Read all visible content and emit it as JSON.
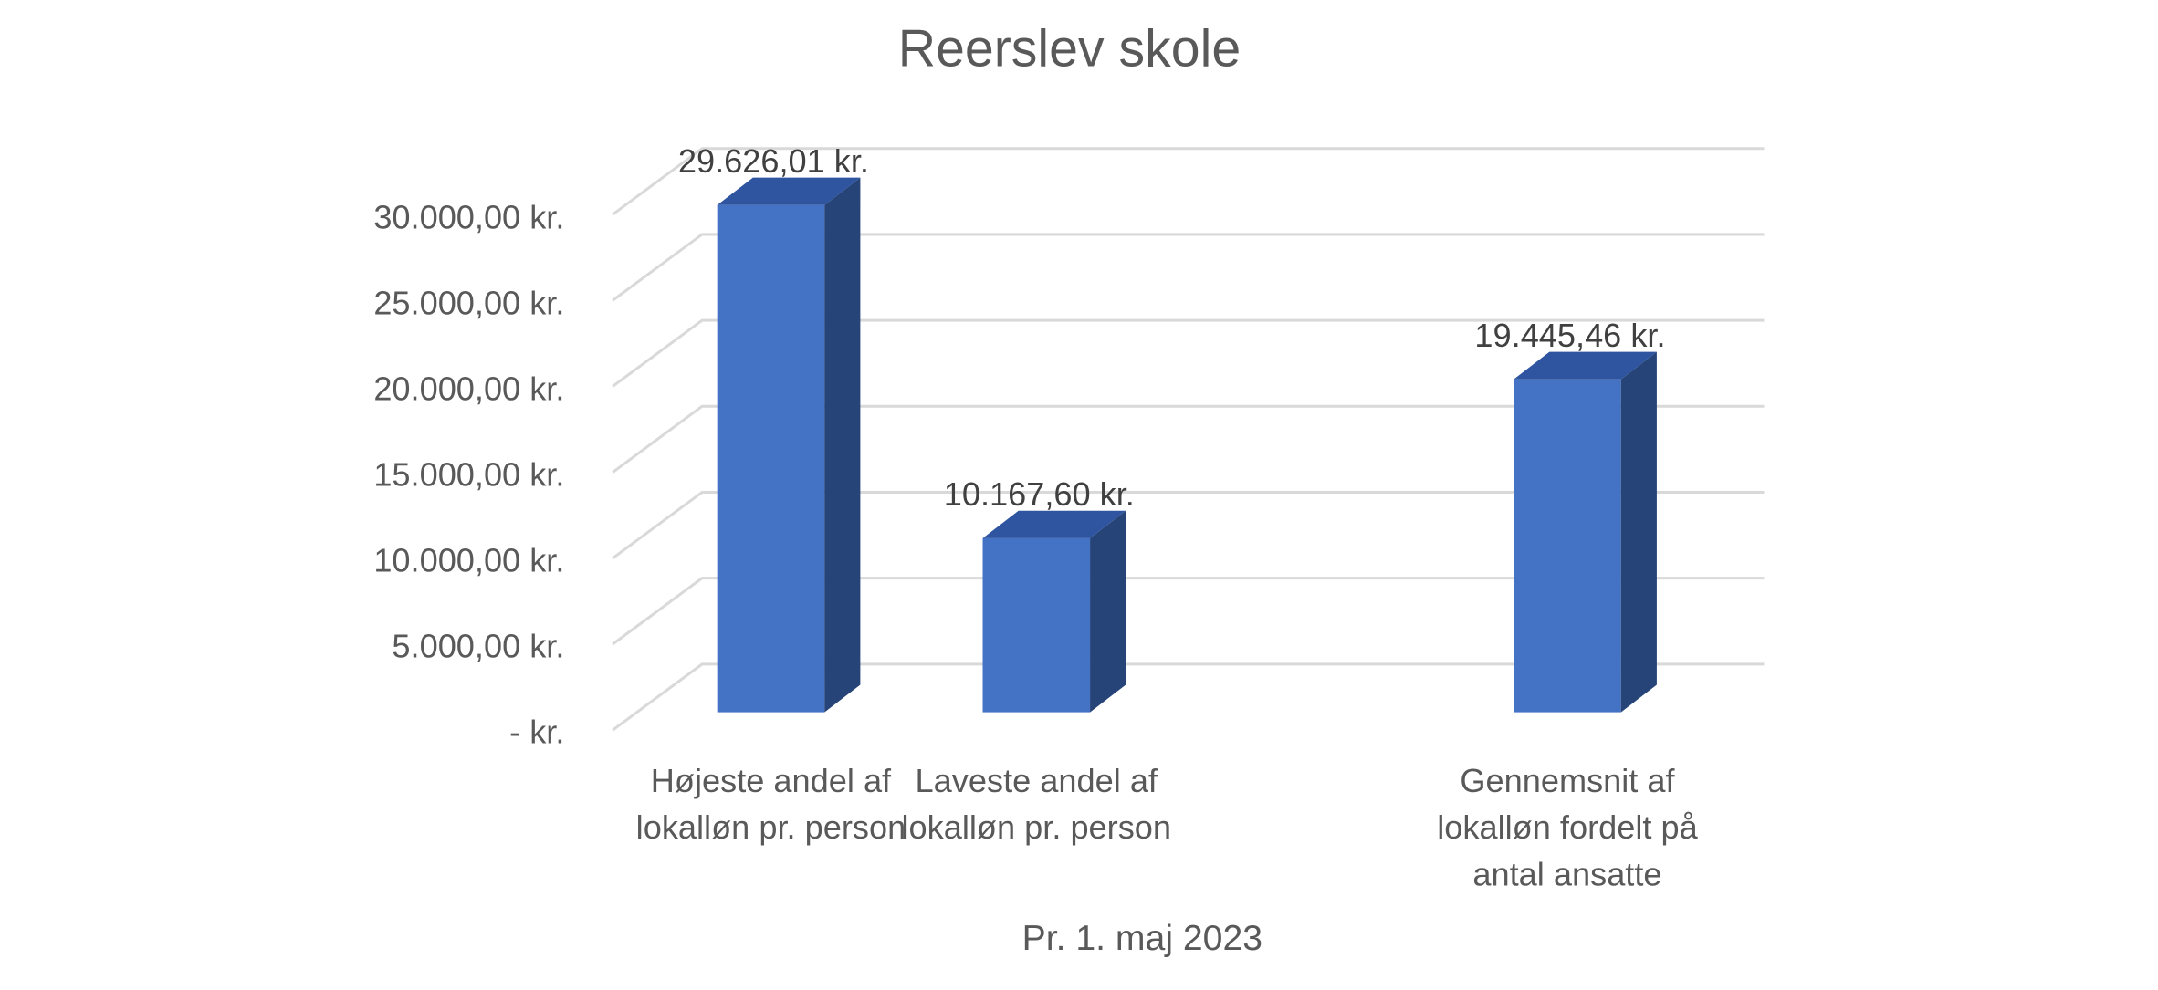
{
  "chart_data": {
    "type": "bar3d",
    "title": "Reerslev skole",
    "x_label": "Pr. 1. maj 2023",
    "categories": [
      "Højeste andel af lokalløn pr. person",
      "Laveste andel af lokalløn pr. person",
      null,
      "Gennemsnit af lokalløn fordelt på antal ansatte"
    ],
    "values": [
      29626.01,
      10167.6,
      null,
      19445.46
    ],
    "value_labels": [
      "29.626,01 kr.",
      "10.167,60 kr.",
      null,
      "19.445,46 kr."
    ],
    "color": "#4472c4",
    "ylim": [
      0,
      30000
    ],
    "yticks": [
      {
        "value": 0,
        "label": "-   kr."
      },
      {
        "value": 5000,
        "label": "5.000,00 kr."
      },
      {
        "value": 10000,
        "label": "10.000,00 kr."
      },
      {
        "value": 15000,
        "label": "15.000,00 kr."
      },
      {
        "value": 20000,
        "label": "20.000,00 kr."
      },
      {
        "value": 25000,
        "label": "25.000,00 kr."
      },
      {
        "value": 30000,
        "label": "30.000,00 kr."
      }
    ],
    "grid": true
  }
}
